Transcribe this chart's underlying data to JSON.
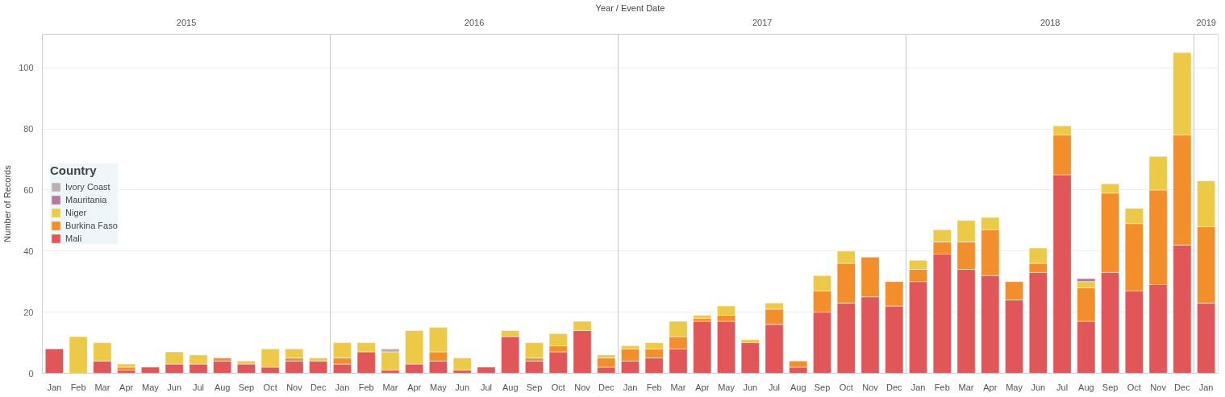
{
  "chart_data": {
    "type": "bar",
    "stacked": true,
    "x2label": "Year / Event Date",
    "ylabel": "Number of Records",
    "legend_title": "Country",
    "legend": "left",
    "grid": true,
    "categories": [
      "Jan",
      "Feb",
      "Mar",
      "Apr",
      "May",
      "Jun",
      "Jul",
      "Aug",
      "Sep",
      "Oct",
      "Nov",
      "Dec",
      "Jan",
      "Feb",
      "Mar",
      "Apr",
      "May",
      "Jun",
      "Jul",
      "Aug",
      "Sep",
      "Oct",
      "Nov",
      "Dec",
      "Jan",
      "Feb",
      "Mar",
      "Apr",
      "May",
      "Jun",
      "Jul",
      "Aug",
      "Sep",
      "Oct",
      "Nov",
      "Dec",
      "Jan",
      "Feb",
      "Mar",
      "Apr",
      "May",
      "Jun",
      "Jul",
      "Aug",
      "Sep",
      "Oct",
      "Nov",
      "Dec",
      "Jan"
    ],
    "x2lim": [
      2015,
      2019.0833
    ],
    "x2ticks": [
      {
        "value": 2015.5,
        "label": "2015"
      },
      {
        "value": 2016,
        "label": null
      },
      {
        "value": 2016.5,
        "label": "2016"
      },
      {
        "value": 2017,
        "label": null
      },
      {
        "value": 2017.5,
        "label": "2017"
      },
      {
        "value": 2018,
        "label": null
      },
      {
        "value": 2018.5,
        "label": "2018"
      },
      {
        "value": 2019,
        "label": null
      },
      {
        "value": 2019.0417,
        "label": "2019"
      }
    ],
    "ylim": [
      0,
      111
    ],
    "yticks": [
      0,
      20,
      40,
      60,
      80,
      100
    ],
    "series": [
      {
        "name": "Mali",
        "color": "#e15759",
        "values": [
          8,
          null,
          4,
          1,
          2,
          3,
          3,
          4,
          3,
          2,
          4,
          4,
          3,
          7,
          1,
          3,
          4,
          1,
          2,
          12,
          4,
          7,
          14,
          2,
          4,
          5,
          8,
          17,
          17,
          10,
          16,
          2,
          20,
          23,
          25,
          22,
          30,
          39,
          34,
          32,
          24,
          33,
          65,
          17,
          33,
          27,
          29,
          42,
          23
        ]
      },
      {
        "name": "Burkina Faso",
        "color": "#f28e2b",
        "values": [
          null,
          null,
          null,
          1,
          null,
          null,
          null,
          1,
          null,
          null,
          1,
          null,
          2,
          null,
          null,
          null,
          3,
          null,
          null,
          null,
          1,
          2,
          null,
          3,
          4,
          3,
          4,
          1,
          2,
          null,
          5,
          2,
          7,
          13,
          13,
          8,
          4,
          4,
          9,
          15,
          6,
          3,
          13,
          11,
          26,
          22,
          31,
          36,
          25
        ]
      },
      {
        "name": "Niger",
        "color": "#edc948",
        "values": [
          null,
          12,
          6,
          1,
          null,
          4,
          3,
          null,
          1,
          6,
          3,
          1,
          5,
          3,
          6,
          11,
          8,
          4,
          null,
          2,
          5,
          4,
          3,
          1,
          1,
          2,
          5,
          1,
          3,
          1,
          2,
          null,
          5,
          4,
          null,
          null,
          3,
          4,
          7,
          4,
          null,
          5,
          3,
          2,
          3,
          5,
          11,
          27,
          15
        ]
      },
      {
        "name": "Mauritania",
        "color": "#b07aa1",
        "values": [
          null,
          null,
          null,
          null,
          null,
          null,
          null,
          null,
          null,
          null,
          null,
          null,
          null,
          null,
          null,
          null,
          null,
          null,
          null,
          null,
          null,
          null,
          null,
          null,
          null,
          null,
          null,
          null,
          null,
          null,
          null,
          null,
          null,
          null,
          null,
          null,
          null,
          null,
          null,
          null,
          null,
          null,
          null,
          1,
          null,
          null,
          null,
          null,
          null
        ]
      },
      {
        "name": "Ivory Coast",
        "color": "#bab0ac",
        "values": [
          null,
          null,
          null,
          null,
          null,
          null,
          null,
          null,
          null,
          null,
          null,
          null,
          null,
          null,
          1,
          null,
          null,
          null,
          null,
          null,
          null,
          null,
          null,
          null,
          null,
          null,
          null,
          null,
          null,
          null,
          null,
          null,
          null,
          null,
          null,
          null,
          null,
          null,
          null,
          null,
          null,
          null,
          null,
          null,
          null,
          null,
          null,
          null,
          null
        ]
      }
    ]
  }
}
